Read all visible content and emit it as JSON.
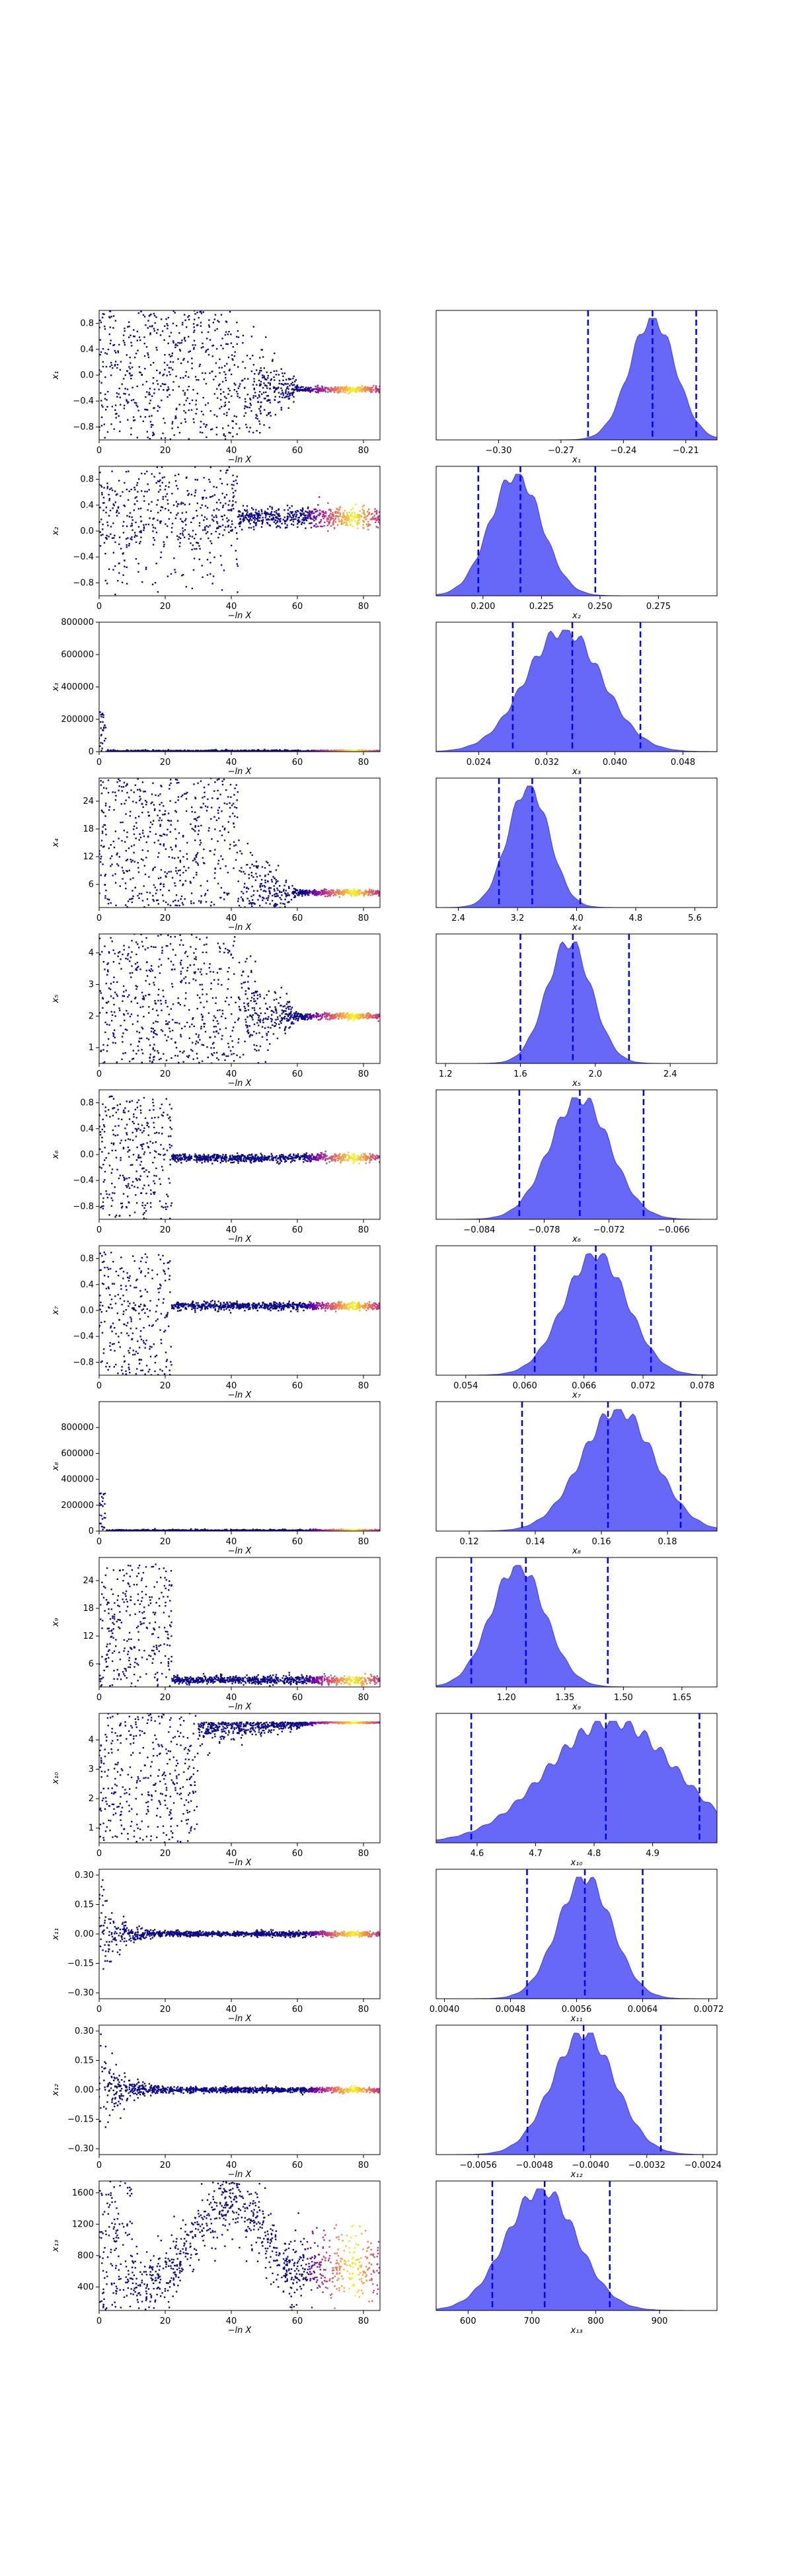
{
  "figure": {
    "background": "#ffffff",
    "trace_low_color": "#0d0887",
    "trace_high_color": "#fde725",
    "kde_fill": "#5a5af7",
    "quantile_line": "#0000ff"
  },
  "trace_xlabel": "−ln X",
  "chart_data": [
    {
      "type": "scatter",
      "ylabel": "x₁",
      "xticks": [
        "0",
        "20",
        "40",
        "60",
        "80"
      ],
      "yticks": [
        "−0.8",
        "−0.4",
        "0.0",
        "0.4",
        "0.8"
      ],
      "xlim": [
        0,
        85
      ],
      "ylim": [
        -1,
        1
      ],
      "style": "wide_cloud",
      "converged": -0.22
    },
    {
      "type": "area",
      "xlabel": "x₁",
      "xticks": [
        "−0.30",
        "−0.27",
        "−0.24",
        "−0.21"
      ],
      "xlim": [
        -0.33,
        -0.195
      ],
      "peak": -0.226,
      "spread": 0.011,
      "quantiles": [
        -0.257,
        -0.226,
        -0.205
      ]
    },
    {
      "type": "scatter",
      "ylabel": "x₂",
      "xticks": [
        "0",
        "20",
        "40",
        "60",
        "80"
      ],
      "yticks": [
        "−0.8",
        "−0.4",
        "0.0",
        "0.4",
        "0.8"
      ],
      "xlim": [
        0,
        85
      ],
      "ylim": [
        -1,
        1
      ],
      "style": "band_cloud",
      "converged": 0.22
    },
    {
      "type": "area",
      "xlabel": "x₂",
      "xticks": [
        "0.200",
        "0.225",
        "0.250",
        "0.275"
      ],
      "xlim": [
        0.18,
        0.3
      ],
      "peak": 0.214,
      "spread": 0.011,
      "quantiles": [
        0.198,
        0.216,
        0.248
      ]
    },
    {
      "type": "scatter",
      "ylabel": "x₃",
      "xticks": [
        "0",
        "20",
        "40",
        "60",
        "80"
      ],
      "yticks": [
        "0",
        "200000",
        "400000",
        "600000",
        "800000"
      ],
      "xlim": [
        0,
        85
      ],
      "ylim": [
        0,
        800000
      ],
      "style": "floor",
      "converged": 0
    },
    {
      "type": "area",
      "xlabel": "x₃",
      "xticks": [
        "0.024",
        "0.032",
        "0.040",
        "0.048"
      ],
      "xlim": [
        0.019,
        0.052
      ],
      "peak": 0.034,
      "spread": 0.0045,
      "quantiles": [
        0.028,
        0.035,
        0.043
      ]
    },
    {
      "type": "scatter",
      "ylabel": "x₄",
      "xticks": [
        "0",
        "20",
        "40",
        "60",
        "80"
      ],
      "yticks": [
        "6",
        "12",
        "18",
        "24"
      ],
      "xlim": [
        0,
        85
      ],
      "ylim": [
        1,
        29
      ],
      "style": "wide_cloud",
      "converged": 4.2
    },
    {
      "type": "area",
      "xlabel": "x₄",
      "xticks": [
        "2.4",
        "3.2",
        "4.0",
        "4.8",
        "5.6"
      ],
      "xlim": [
        2.1,
        5.9
      ],
      "peak": 3.35,
      "spread": 0.28,
      "quantiles": [
        2.95,
        3.4,
        4.05
      ]
    },
    {
      "type": "scatter",
      "ylabel": "x₅",
      "xticks": [
        "0",
        "20",
        "40",
        "60",
        "80"
      ],
      "yticks": [
        "1",
        "2",
        "3",
        "4"
      ],
      "xlim": [
        0,
        85
      ],
      "ylim": [
        0.5,
        4.6
      ],
      "style": "wide_cloud",
      "converged": 2.0
    },
    {
      "type": "area",
      "xlabel": "x₅",
      "xticks": [
        "1.2",
        "1.6",
        "2.0",
        "2.4"
      ],
      "xlim": [
        1.15,
        2.65
      ],
      "peak": 1.86,
      "spread": 0.12,
      "quantiles": [
        1.6,
        1.88,
        2.18
      ]
    },
    {
      "type": "scatter",
      "ylabel": "x₆",
      "xticks": [
        "0",
        "20",
        "40",
        "60",
        "80"
      ],
      "yticks": [
        "−0.8",
        "−0.4",
        "0.0",
        "0.4",
        "0.8"
      ],
      "xlim": [
        0,
        85
      ],
      "ylim": [
        -1,
        1
      ],
      "style": "early_cloud",
      "converged": -0.05
    },
    {
      "type": "area",
      "xlabel": "x₆",
      "xticks": [
        "−0.084",
        "−0.078",
        "−0.072",
        "−0.066"
      ],
      "xlim": [
        -0.088,
        -0.062
      ],
      "peak": -0.0747,
      "spread": 0.0028,
      "quantiles": [
        -0.0803,
        -0.0747,
        -0.0688
      ]
    },
    {
      "type": "scatter",
      "ylabel": "x₇",
      "xticks": [
        "0",
        "20",
        "40",
        "60",
        "80"
      ],
      "yticks": [
        "−0.8",
        "−0.4",
        "0.0",
        "0.4",
        "0.8"
      ],
      "xlim": [
        0,
        85
      ],
      "ylim": [
        -1,
        1
      ],
      "style": "early_cloud",
      "converged": 0.07
    },
    {
      "type": "area",
      "xlabel": "x₇",
      "xticks": [
        "0.054",
        "0.060",
        "0.066",
        "0.072",
        "0.078"
      ],
      "xlim": [
        0.051,
        0.0795
      ],
      "peak": 0.0672,
      "spread": 0.0032,
      "quantiles": [
        0.061,
        0.0672,
        0.0728
      ]
    },
    {
      "type": "scatter",
      "ylabel": "x₈",
      "xticks": [
        "0",
        "20",
        "40",
        "60",
        "80"
      ],
      "yticks": [
        "0",
        "200000",
        "400000",
        "600000",
        "800000"
      ],
      "xlim": [
        0,
        85
      ],
      "ylim": [
        0,
        1000000
      ],
      "style": "floor",
      "converged": 0
    },
    {
      "type": "area",
      "xlabel": "x₈",
      "xticks": [
        "0.12",
        "0.14",
        "0.16",
        "0.18"
      ],
      "xlim": [
        0.11,
        0.195
      ],
      "peak": 0.165,
      "spread": 0.011,
      "quantiles": [
        0.136,
        0.162,
        0.184
      ]
    },
    {
      "type": "scatter",
      "ylabel": "x₉",
      "xticks": [
        "0",
        "20",
        "40",
        "60",
        "80"
      ],
      "yticks": [
        "6",
        "12",
        "18",
        "24"
      ],
      "xlim": [
        0,
        85
      ],
      "ylim": [
        1,
        29
      ],
      "style": "early_cloud",
      "converged": 2.5
    },
    {
      "type": "area",
      "xlabel": "x₉",
      "xticks": [
        "1.20",
        "1.35",
        "1.50",
        "1.65"
      ],
      "xlim": [
        1.02,
        1.74
      ],
      "peak": 1.23,
      "spread": 0.07,
      "quantiles": [
        1.11,
        1.25,
        1.46
      ]
    },
    {
      "type": "scatter",
      "ylabel": "x₁₀",
      "xticks": [
        "0",
        "20",
        "40",
        "60",
        "80"
      ],
      "yticks": [
        "1",
        "2",
        "3",
        "4"
      ],
      "xlim": [
        0,
        85
      ],
      "ylim": [
        0.5,
        4.9
      ],
      "style": "top_band",
      "converged": 4.6
    },
    {
      "type": "area",
      "xlabel": "x₁₀",
      "xticks": [
        "4.6",
        "4.7",
        "4.8",
        "4.9"
      ],
      "xlim": [
        4.53,
        5.01
      ],
      "peak": 4.83,
      "spread": 0.11,
      "quantiles": [
        4.59,
        4.82,
        4.98
      ]
    },
    {
      "type": "scatter",
      "ylabel": "x₁₁",
      "xticks": [
        "0",
        "20",
        "40",
        "60",
        "80"
      ],
      "yticks": [
        "−0.30",
        "−0.15",
        "0.00",
        "0.15",
        "0.30"
      ],
      "xlim": [
        0,
        85
      ],
      "ylim": [
        -0.33,
        0.33
      ],
      "style": "funnel",
      "converged": 0.0
    },
    {
      "type": "area",
      "xlabel": "x₁₁",
      "xticks": [
        "0.0040",
        "0.0048",
        "0.0056",
        "0.0064",
        "0.0072"
      ],
      "xlim": [
        0.0039,
        0.0073
      ],
      "peak": 0.0057,
      "spread": 0.00033,
      "quantiles": [
        0.005,
        0.0057,
        0.0064
      ]
    },
    {
      "type": "scatter",
      "ylabel": "x₁₂",
      "xticks": [
        "0",
        "20",
        "40",
        "60",
        "80"
      ],
      "yticks": [
        "−0.30",
        "−0.15",
        "0.00",
        "0.15",
        "0.30"
      ],
      "xlim": [
        0,
        85
      ],
      "ylim": [
        -0.33,
        0.33
      ],
      "style": "funnel",
      "converged": 0.0
    },
    {
      "type": "area",
      "xlabel": "x₁₂",
      "xticks": [
        "−0.0056",
        "−0.0048",
        "−0.0040",
        "−0.0032",
        "−0.0024"
      ],
      "xlim": [
        -0.0062,
        -0.0022
      ],
      "peak": -0.0041,
      "spread": 0.00045,
      "quantiles": [
        -0.0049,
        -0.0041,
        -0.003
      ]
    },
    {
      "type": "scatter",
      "ylabel": "x₁₃",
      "xticks": [
        "0",
        "20",
        "40",
        "60",
        "80"
      ],
      "yticks": [
        "400",
        "800",
        "1200",
        "1600"
      ],
      "xlim": [
        0,
        85
      ],
      "ylim": [
        100,
        1750
      ],
      "style": "mountain",
      "converged": 730
    },
    {
      "type": "area",
      "xlabel": "x₁₃",
      "xticks": [
        "600",
        "700",
        "800",
        "900"
      ],
      "xlim": [
        550,
        990
      ],
      "peak": 715,
      "spread": 55,
      "quantiles": [
        638,
        720,
        822
      ]
    }
  ]
}
